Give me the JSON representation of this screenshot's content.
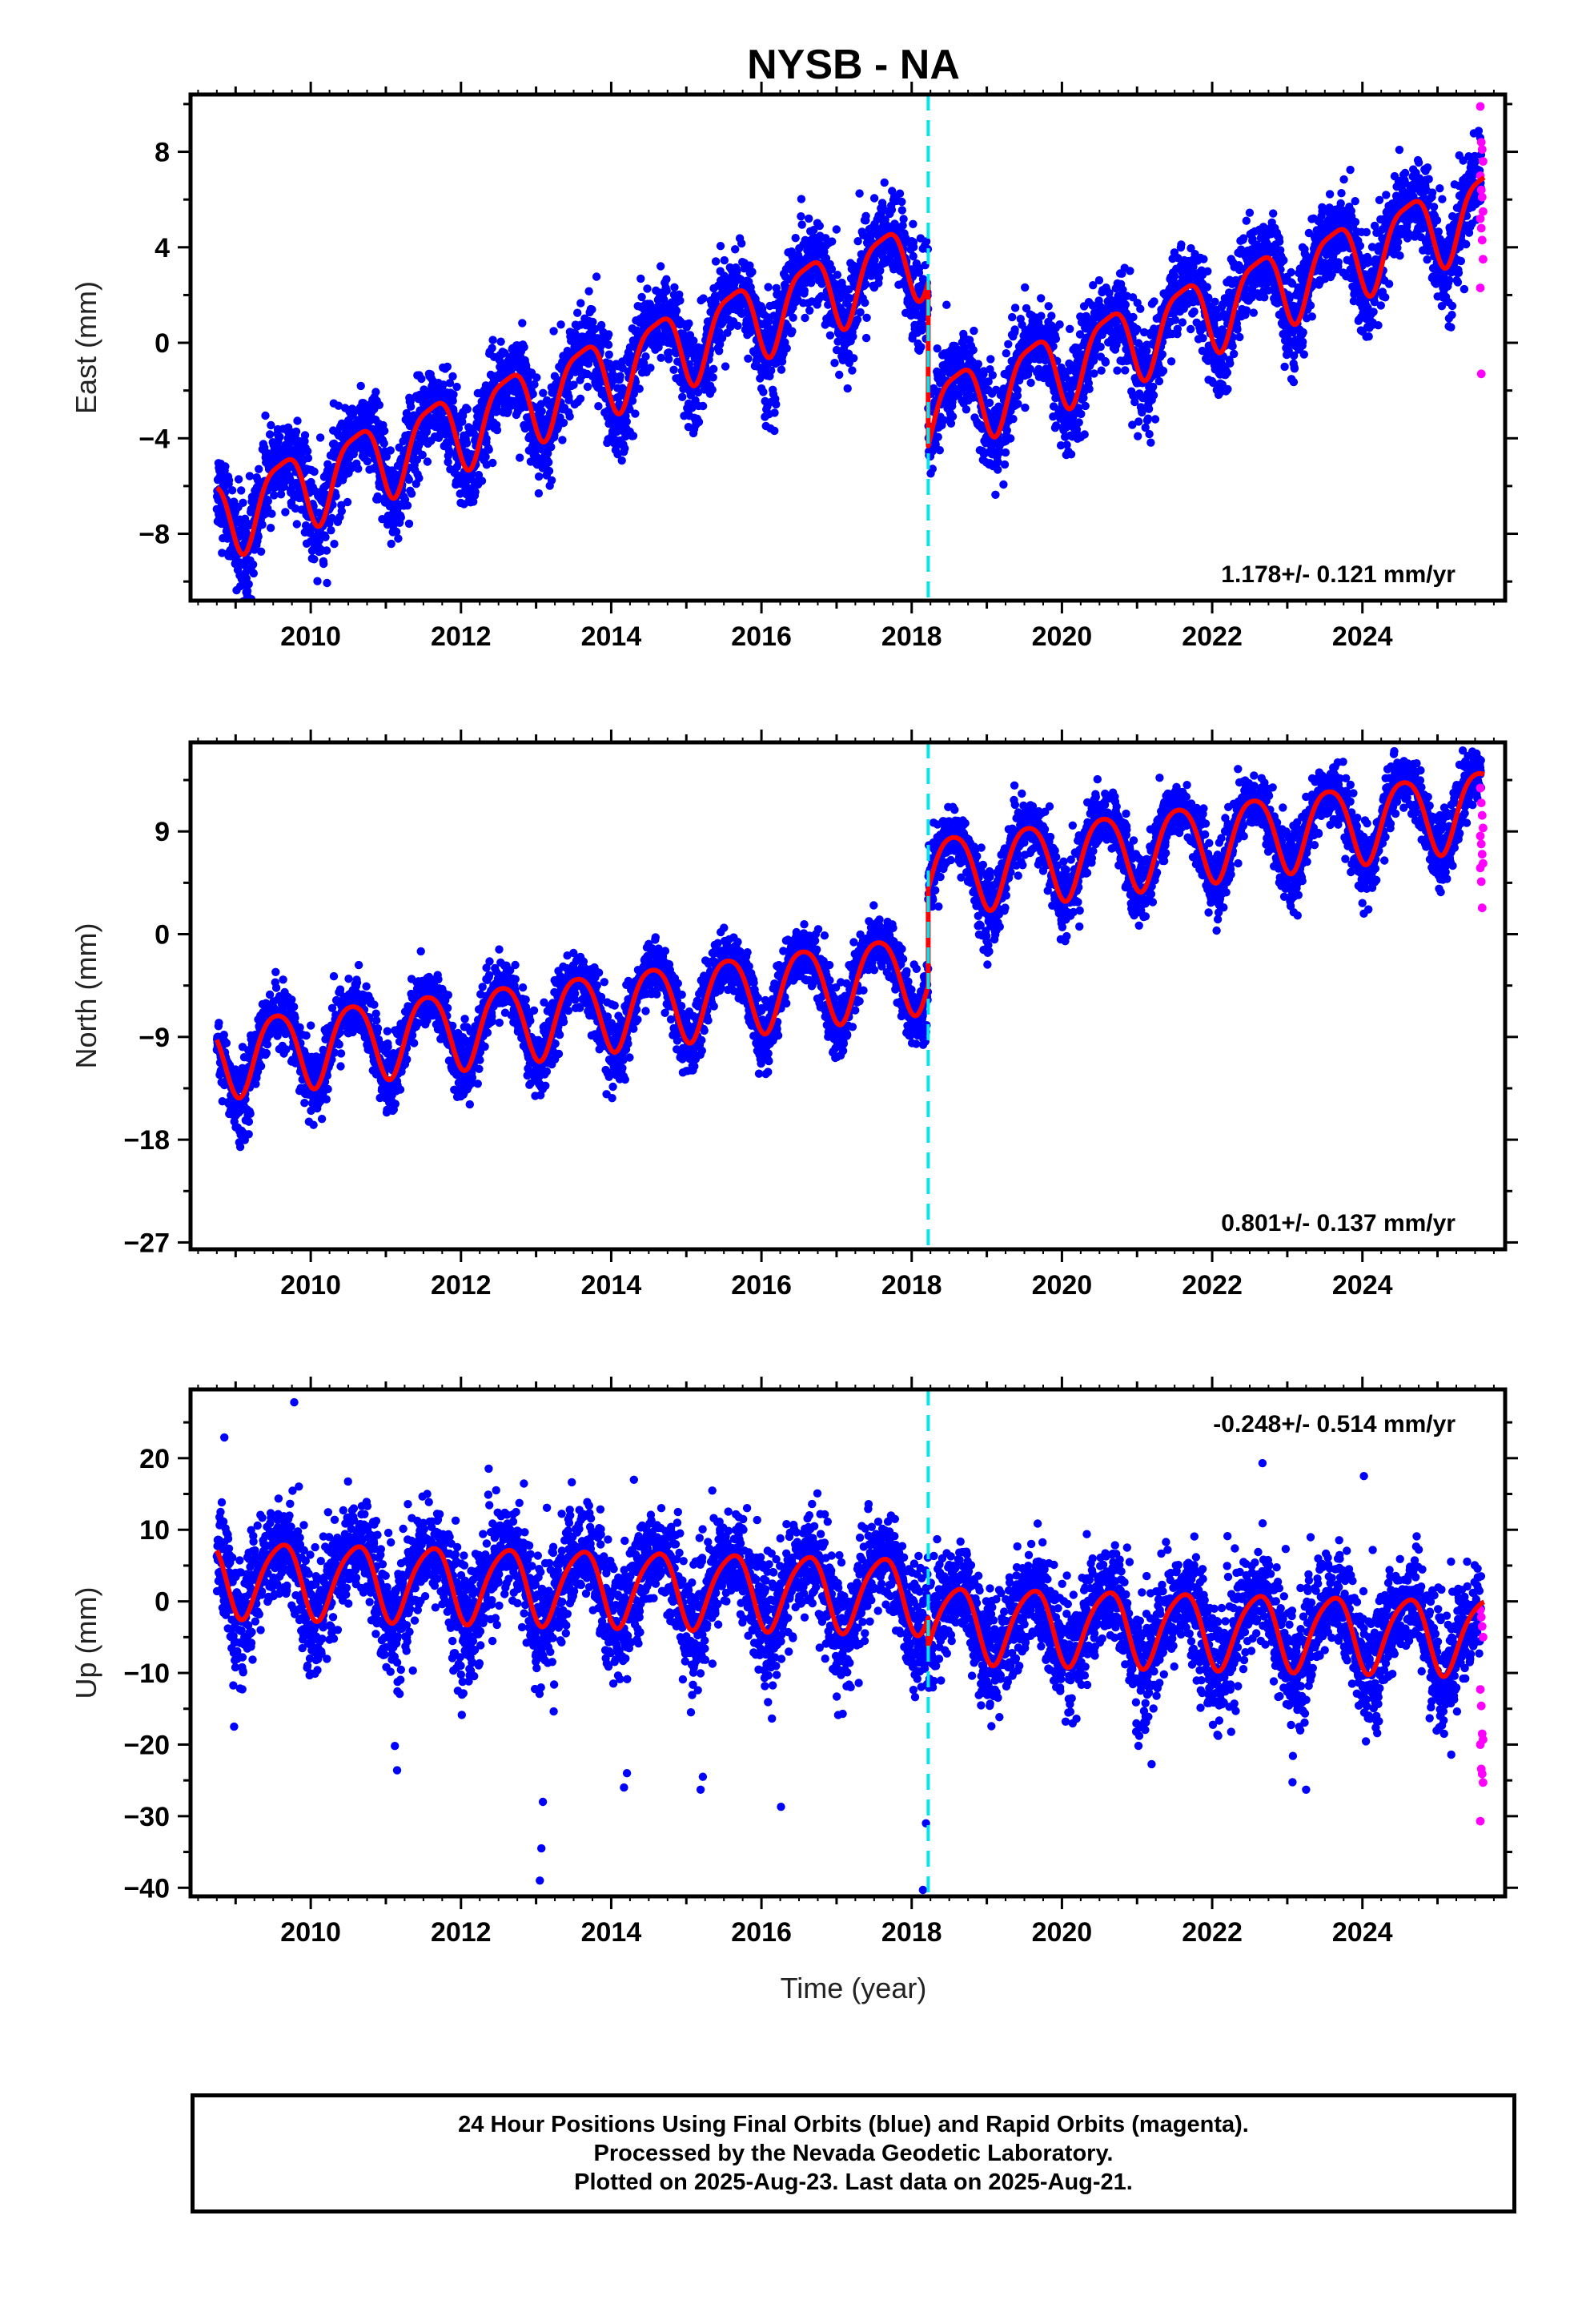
{
  "chart_data": {
    "type": "scatter",
    "title": "NYSB - NA",
    "xlabel": "Time (year)",
    "colors": {
      "final": "#0000ff",
      "rapid": "#ff00ff",
      "model": "#ff0000",
      "offset": "#00e5ee"
    },
    "offset_epoch": 2018.22,
    "xlim": [
      2008.4,
      2025.9
    ],
    "xticks": [
      2010,
      2012,
      2014,
      2016,
      2018,
      2020,
      2022,
      2024
    ],
    "panels": [
      {
        "id": "east",
        "ylabel": "East (mm)",
        "rate_text": "1.178+/- 0.121 mm/yr",
        "ylim": [
          -10.8,
          10.4
        ],
        "yticks": [
          -8,
          -4,
          0,
          4,
          8
        ],
        "data_range": [
          2008.75,
          2025.62
        ],
        "model": {
          "segments": [
            {
              "t_start": 2008.75,
              "t_end": 2018.22,
              "t_ref": 2008.75,
              "offset": -7.3,
              "rate": 1.178
            },
            {
              "t_start": 2018.22,
              "t_end": 2025.62,
              "t_ref": 2018.22,
              "offset": -3.0,
              "rate": 1.178
            }
          ],
          "annual_amplitude": 1.6,
          "annual_phase_year": 0.62,
          "semiannual_amplitude": 0.4,
          "semiannual_phase_year": 0.35,
          "noise_sigma": 0.9
        },
        "rapid_values": [
          9.9,
          8.4,
          8.1,
          7.6,
          7.0,
          6.4,
          6.1,
          5.5,
          5.2,
          4.8,
          4.3,
          3.5,
          2.3,
          -1.3
        ]
      },
      {
        "id": "north",
        "ylabel": "North (mm)",
        "rate_text": "0.801+/- 0.137 mm/yr",
        "ylim": [
          -27.6,
          16.8
        ],
        "yticks": [
          -27,
          -18,
          -9,
          0,
          9
        ],
        "data_range": [
          2008.75,
          2025.62
        ],
        "model": {
          "segments": [
            {
              "t_start": 2008.75,
              "t_end": 2018.22,
              "t_ref": 2008.75,
              "offset": -10.7,
              "rate": 0.801
            },
            {
              "t_start": 2018.22,
              "t_end": 2025.62,
              "t_ref": 2018.22,
              "offset": 5.3,
              "rate": 0.801
            }
          ],
          "annual_amplitude": 3.4,
          "annual_phase_year": 0.55,
          "semiannual_amplitude": 0.5,
          "semiannual_phase_year": 0.3,
          "noise_sigma": 1.3
        },
        "rapid_values": [
          12.8,
          11.5,
          10.4,
          9.3,
          8.6,
          7.9,
          7.0,
          6.2,
          5.8,
          4.6,
          2.3
        ]
      },
      {
        "id": "up",
        "ylabel": "Up (mm)",
        "rate_text": "-0.248+/- 0.514 mm/yr",
        "ylim": [
          -41.2,
          29.6
        ],
        "yticks": [
          -40,
          -30,
          -20,
          -10,
          0,
          10,
          20
        ],
        "data_range": [
          2008.75,
          2025.62
        ],
        "model": {
          "segments": [
            {
              "t_start": 2008.75,
              "t_end": 2018.22,
              "t_ref": 2008.75,
              "offset": 3.4,
              "rate": -0.248
            },
            {
              "t_start": 2018.22,
              "t_end": 2025.62,
              "t_ref": 2018.22,
              "offset": -2.9,
              "rate": -0.248
            }
          ],
          "annual_amplitude": 5.2,
          "annual_phase_year": 0.6,
          "semiannual_amplitude": 0.8,
          "semiannual_phase_year": 0.3,
          "noise_sigma": 3.6
        },
        "outliers": [
          {
            "t": 2009.78,
            "v": 27.8
          },
          {
            "t": 2008.85,
            "v": 22.9
          },
          {
            "t": 2013.05,
            "v": -39.0
          },
          {
            "t": 2013.07,
            "v": -34.5
          },
          {
            "t": 2013.09,
            "v": -28.0
          },
          {
            "t": 2014.17,
            "v": -26.0
          },
          {
            "t": 2014.21,
            "v": -24.0
          },
          {
            "t": 2015.19,
            "v": -26.3
          },
          {
            "t": 2015.22,
            "v": -24.5
          },
          {
            "t": 2016.26,
            "v": -28.7
          },
          {
            "t": 2018.15,
            "v": -40.3
          },
          {
            "t": 2018.19,
            "v": -31.0
          },
          {
            "t": 2023.25,
            "v": -26.3
          },
          {
            "t": 2011.12,
            "v": -20.2
          },
          {
            "t": 2011.15,
            "v": -23.6
          },
          {
            "t": 2008.98,
            "v": -17.5
          },
          {
            "t": 2024.02,
            "v": 17.5
          },
          {
            "t": 2022.67,
            "v": 19.3
          }
        ],
        "rapid_values": [
          -1.2,
          -2.2,
          -3.5,
          -5.0,
          -12.3,
          -14.6,
          -18.5,
          -19.3,
          -20.0,
          -23.4,
          -24.1,
          -25.3,
          -30.7
        ]
      }
    ]
  },
  "caption": {
    "line1": "24 Hour Positions Using Final Orbits (blue) and Rapid Orbits (magenta).",
    "line2": "Processed by the Nevada Geodetic Laboratory.",
    "line3": "Plotted on 2025-Aug-23. Last data on 2025-Aug-21."
  }
}
